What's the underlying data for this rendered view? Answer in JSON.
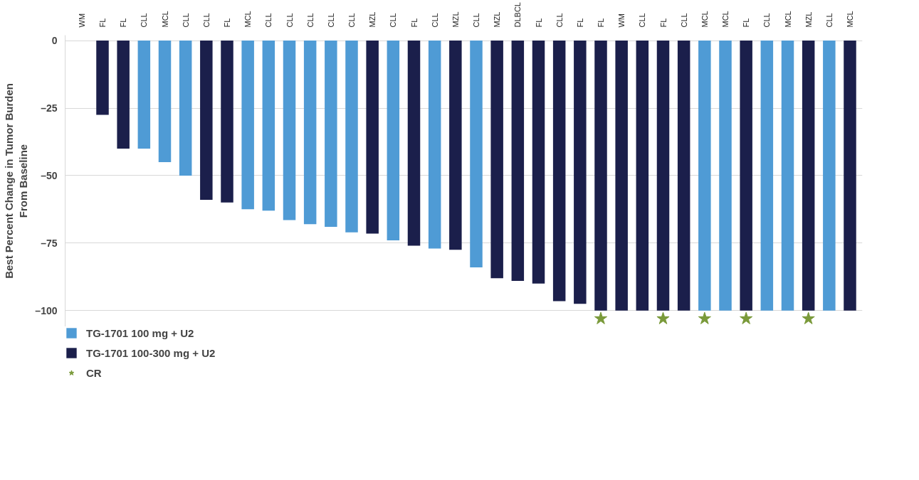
{
  "chart_data": {
    "type": "bar",
    "ylabel": "Best Percent Change in Tumor Burden\nFrom Baseline",
    "categories": [
      "WM",
      "FL",
      "FL",
      "CLL",
      "MCL",
      "CLL",
      "CLL",
      "FL",
      "MCL",
      "CLL",
      "CLL",
      "CLL",
      "CLL",
      "CLL",
      "MZL",
      "CLL",
      "FL",
      "CLL",
      "MZL",
      "CLL",
      "MZL",
      "DLBCL",
      "FL",
      "CLL",
      "FL",
      "FL",
      "WM",
      "CLL",
      "FL",
      "CLL",
      "MCL",
      "MCL",
      "FL",
      "CLL",
      "MCL",
      "MZL",
      "CLL",
      "MCL"
    ],
    "series": [
      {
        "name": "TG-1701 100 mg + U2",
        "color": "#4f9bd5",
        "values": [
          null,
          null,
          null,
          -40,
          -45,
          -50,
          null,
          null,
          -62.5,
          -63,
          -66.5,
          -68,
          -69,
          -71,
          null,
          -74,
          null,
          -77,
          null,
          -84,
          null,
          null,
          null,
          null,
          null,
          null,
          null,
          null,
          null,
          null,
          -100,
          -100,
          null,
          -100,
          -100,
          null,
          -100,
          null
        ]
      },
      {
        "name": "TG-1701 100-300 mg + U2",
        "color": "#1b1f4b",
        "values": [
          0,
          -27.5,
          -40,
          null,
          null,
          null,
          -59,
          -60,
          null,
          null,
          null,
          null,
          null,
          null,
          -71.5,
          null,
          -76,
          null,
          -77.5,
          null,
          -88,
          -89,
          -90,
          -96.5,
          -97.5,
          -100,
          -100,
          -100,
          -100,
          -100,
          null,
          null,
          -100,
          null,
          null,
          -100,
          null,
          -100
        ]
      },
      {
        "name": "CR",
        "type": "scatter",
        "marker": "star",
        "color": "#7a9a3a",
        "values": [
          null,
          null,
          null,
          null,
          null,
          null,
          null,
          null,
          null,
          null,
          null,
          null,
          null,
          null,
          null,
          null,
          null,
          null,
          null,
          null,
          null,
          null,
          null,
          null,
          null,
          -103,
          null,
          null,
          -103,
          null,
          -103,
          null,
          -103,
          null,
          null,
          -103,
          null,
          null
        ]
      }
    ],
    "ylim": [
      -106,
      2
    ],
    "yticks": [
      0,
      {
        "value": -25,
        "label": "–25"
      },
      {
        "value": -50,
        "label": "–50"
      },
      {
        "value": -75,
        "label": "–75"
      },
      {
        "value": -100,
        "label": "–100"
      }
    ],
    "grid": "y",
    "legend": "bottom left"
  }
}
